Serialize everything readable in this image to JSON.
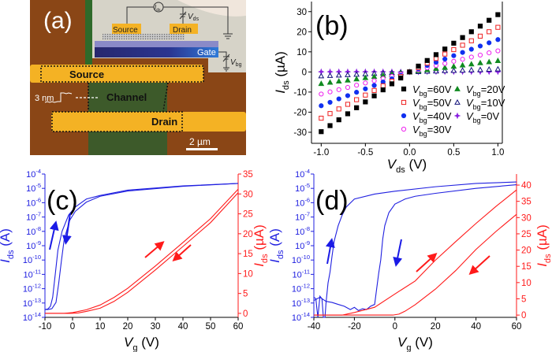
{
  "panel_a": {
    "label": "(a)",
    "inset": {
      "ids_main": "I",
      "ids_sub": "ds",
      "vds_main": "V",
      "vds_sub": "ds",
      "vbg_main": "V",
      "vbg_sub": "bg",
      "source": "Source",
      "drain": "Drain",
      "gate": "Gate"
    },
    "source": "Source",
    "channel": "Channel",
    "drain": "Drain",
    "step_label": "3 nm",
    "scale_bar": "2 µm",
    "colors": {
      "substrate": "#8a4616",
      "electrode": "#f4b224",
      "channel": "#3d5a2a",
      "gate": "#27308a"
    }
  },
  "chart_data": [
    {
      "id": "b",
      "type": "scatter",
      "panel_label": "(b)",
      "xlabel": {
        "main": "V",
        "sub": "ds",
        "unit": " (V)"
      },
      "ylabel": {
        "main": "I",
        "sub": "ds",
        "unit": " (µA)"
      },
      "xlim": [
        -1.11,
        1.05
      ],
      "ylim": [
        -35.5,
        35
      ],
      "xticks": [
        -1.0,
        -0.5,
        0.0,
        0.5,
        1.0
      ],
      "xtick_labels": [
        "-1.0",
        "-0.5",
        "0.0",
        "0.5",
        "1.0"
      ],
      "yticks": [
        -30,
        -20,
        -10,
        0,
        10,
        20,
        30
      ],
      "ytick_labels": [
        "-30",
        "-20",
        "-10",
        "0",
        "10",
        "20",
        "30"
      ],
      "legend_placement": "lower-right",
      "x": [
        -1.0,
        -0.9,
        -0.8,
        -0.7,
        -0.6,
        -0.5,
        -0.4,
        -0.3,
        -0.2,
        -0.1,
        0,
        0.1,
        0.2,
        0.3,
        0.4,
        0.5,
        0.6,
        0.7,
        0.8,
        0.9,
        1.0
      ],
      "series": [
        {
          "name_main": "V",
          "name_sub": "bg",
          "name_rest": "=60V",
          "color": "#000000",
          "marker": "square-filled",
          "values": [
            -29.7,
            -26.7,
            -23.8,
            -20.8,
            -17.8,
            -14.9,
            -11.9,
            -8.9,
            -5.9,
            -3.0,
            0,
            2.9,
            5.7,
            8.6,
            11.4,
            14.3,
            17.1,
            20.0,
            22.8,
            25.7,
            28.5
          ]
        },
        {
          "name_main": "V",
          "name_sub": "bg",
          "name_rest": "=50V",
          "color": "#ee2020",
          "marker": "square-open",
          "values": [
            -23.0,
            -20.7,
            -18.4,
            -16.1,
            -13.8,
            -11.5,
            -9.2,
            -6.9,
            -4.6,
            -2.3,
            0,
            2.2,
            4.4,
            6.7,
            8.9,
            11.1,
            13.3,
            15.5,
            17.8,
            20.0,
            22.2
          ]
        },
        {
          "name_main": "V",
          "name_sub": "bg",
          "name_rest": "=40V",
          "color": "#1030f0",
          "marker": "circle-filled",
          "values": [
            -16.8,
            -15.1,
            -13.4,
            -11.8,
            -10.1,
            -8.4,
            -6.7,
            -5.0,
            -3.4,
            -1.7,
            0,
            1.6,
            3.2,
            4.8,
            6.4,
            8.1,
            9.7,
            11.3,
            12.9,
            14.5,
            16.1
          ]
        },
        {
          "name_main": "V",
          "name_sub": "bg",
          "name_rest": "=30V",
          "color": "#ee20ee",
          "marker": "circle-open",
          "values": [
            -11.0,
            -9.9,
            -8.8,
            -7.7,
            -6.6,
            -5.5,
            -4.4,
            -3.3,
            -2.2,
            -1.1,
            0,
            1.1,
            2.1,
            3.2,
            4.2,
            5.3,
            6.3,
            7.4,
            8.4,
            9.5,
            10.5
          ]
        },
        {
          "name_main": "V",
          "name_sub": "bg",
          "name_rest": "=20V",
          "color": "#108a20",
          "marker": "triangle-filled",
          "values": [
            -5.8,
            -5.2,
            -4.6,
            -4.1,
            -3.5,
            -2.9,
            -2.3,
            -1.7,
            -1.2,
            -0.6,
            0,
            0.6,
            1.1,
            1.7,
            2.2,
            2.8,
            3.4,
            3.9,
            4.5,
            5.0,
            5.6
          ]
        },
        {
          "name_main": "V",
          "name_sub": "bg",
          "name_rest": "=10V",
          "color": "#10107a",
          "marker": "triangle-open",
          "values": [
            -2.0,
            -1.8,
            -1.6,
            -1.4,
            -1.2,
            -1.0,
            -0.8,
            -0.6,
            -0.4,
            -0.2,
            0,
            0.1,
            0.3,
            0.4,
            0.6,
            0.7,
            0.8,
            1.0,
            1.1,
            1.3,
            1.4
          ]
        },
        {
          "name_main": "V",
          "name_sub": "bg",
          "name_rest": "=0V",
          "color": "#8a20e0",
          "marker": "star-filled",
          "values": [
            0.1,
            0.1,
            0.1,
            0.1,
            0.1,
            0.1,
            0.1,
            0.1,
            0.1,
            0.0,
            0,
            0.0,
            0.1,
            0.1,
            0.1,
            0.1,
            0.1,
            0.1,
            0.1,
            0.1,
            0.1
          ]
        }
      ]
    },
    {
      "id": "c",
      "type": "line",
      "panel_label": "(c)",
      "xlabel": {
        "main": "V",
        "sub": "g",
        "unit": " (V)"
      },
      "ylabel_left": {
        "main": "I",
        "sub": "ds",
        "unit": " (A)"
      },
      "ylabel_right": {
        "main": "I",
        "sub": "ds",
        "unit": " (µA)"
      },
      "xlim": [
        -10,
        60
      ],
      "ylim_left_log10": [
        -14,
        -4
      ],
      "ylim_right": [
        -1,
        35
      ],
      "xticks": [
        -10,
        0,
        10,
        20,
        30,
        40,
        50,
        60
      ],
      "xtick_labels": [
        "-10",
        "0",
        "10",
        "20",
        "30",
        "40",
        "50",
        "60"
      ],
      "yticks_left_exp": [
        -14,
        -13,
        -12,
        -11,
        -10,
        -9,
        -8,
        -7,
        -6,
        -5,
        -4
      ],
      "yticks_right": [
        0,
        5,
        10,
        15,
        20,
        25,
        30,
        35
      ],
      "ytick_labels_right": [
        "0",
        "5",
        "10",
        "15",
        "20",
        "25",
        "30",
        "35"
      ],
      "left_color": "#2020e0",
      "right_color": "#ff1a1a",
      "log_series": [
        {
          "sweep": "forward",
          "points": [
            [
              -10,
              3.5e-14
            ],
            [
              -9,
              3.8e-14
            ],
            [
              -8,
              6e-14
            ],
            [
              -7.2,
              2.5e-13
            ],
            [
              -6.2,
              1.3e-11
            ],
            [
              -5.3,
              5e-10
            ],
            [
              -3.8,
              1e-08
            ],
            [
              -1.4,
              1.4e-07
            ],
            [
              1,
              5e-07
            ],
            [
              5,
              1.8e-06
            ],
            [
              10,
              3.2e-06
            ],
            [
              20,
              7.5e-06
            ],
            [
              40,
              1.5e-05
            ],
            [
              60,
              2.2e-05
            ]
          ]
        },
        {
          "sweep": "reverse",
          "points": [
            [
              -10,
              3.5e-14
            ],
            [
              -9,
              3.5e-14
            ],
            [
              -7.5,
              4e-14
            ],
            [
              -6,
              1.1e-13
            ],
            [
              -5,
              2.5e-12
            ],
            [
              -4,
              1e-10
            ],
            [
              -3,
              3e-09
            ],
            [
              -1,
              6e-08
            ],
            [
              1,
              2.5e-07
            ],
            [
              5,
              1.1e-06
            ],
            [
              10,
              2.8e-06
            ],
            [
              20,
              6.5e-06
            ],
            [
              40,
              1.4e-05
            ],
            [
              60,
              2.2e-05
            ]
          ]
        }
      ],
      "lin_series": [
        {
          "sweep": "forward",
          "points": [
            [
              -10,
              0
            ],
            [
              -3,
              0
            ],
            [
              0,
              0.2
            ],
            [
              5,
              0.9
            ],
            [
              10,
              2.1
            ],
            [
              15,
              4
            ],
            [
              20,
              6.3
            ],
            [
              30,
              11.9
            ],
            [
              40,
              17.8
            ],
            [
              50,
              23.8
            ],
            [
              60,
              31.2
            ]
          ]
        },
        {
          "sweep": "reverse",
          "points": [
            [
              -10,
              0
            ],
            [
              -1,
              0
            ],
            [
              2,
              0.1
            ],
            [
              5,
              0.5
            ],
            [
              10,
              1.3
            ],
            [
              15,
              3
            ],
            [
              20,
              5.3
            ],
            [
              30,
              10.9
            ],
            [
              40,
              16.8
            ],
            [
              50,
              22.8
            ],
            [
              60,
              30.3
            ]
          ]
        }
      ]
    },
    {
      "id": "d",
      "type": "line",
      "panel_label": "(d)",
      "xlabel": {
        "main": "V",
        "sub": "g",
        "unit": " (V)"
      },
      "ylabel_left": {
        "main": "I",
        "sub": "ds",
        "unit": " (A)"
      },
      "ylabel_right": {
        "main": "I",
        "sub": "ds",
        "unit": " (µA)"
      },
      "xlim": [
        -40,
        60
      ],
      "ylim_left_log10": [
        -14,
        -4
      ],
      "ylim_right": [
        -0.7,
        43.4
      ],
      "xticks": [
        -40,
        -20,
        0,
        20,
        40,
        60
      ],
      "xtick_labels": [
        "-40",
        "-20",
        "0",
        "20",
        "40",
        "60"
      ],
      "yticks_left_exp": [
        -14,
        -13,
        -12,
        -11,
        -10,
        -9,
        -8,
        -7,
        -6,
        -5,
        -4
      ],
      "yticks_right": [
        0,
        5,
        10,
        15,
        20,
        25,
        30,
        35,
        40
      ],
      "ytick_labels_right": [
        "0",
        "5",
        "10",
        "15",
        "20",
        "25",
        "30",
        "35",
        "40"
      ],
      "left_color": "#2020e0",
      "right_color": "#ff1a1a",
      "log_series": [
        {
          "sweep": "forward",
          "points": [
            [
              -40,
              2.5e-13
            ],
            [
              -39,
              2e-13
            ],
            [
              -38.5,
              4e-14
            ],
            [
              -38,
              1e-14
            ],
            [
              -37,
              3e-13
            ],
            [
              -36,
              2e-13
            ],
            [
              -35.3,
              1e-14
            ],
            [
              -34.5,
              1e-14
            ],
            [
              -34,
              1e-13
            ],
            [
              -33,
              2.5e-12
            ],
            [
              -32,
              1.5e-11
            ],
            [
              -31,
              2e-10
            ],
            [
              -30,
              2e-09
            ],
            [
              -28,
              2.5e-08
            ],
            [
              -26,
              1.4e-07
            ],
            [
              -24,
              5e-07
            ],
            [
              -20,
              1.8e-06
            ],
            [
              -10,
              4e-06
            ],
            [
              0,
              6.3e-06
            ],
            [
              20,
              1.3e-05
            ],
            [
              40,
              2.2e-05
            ],
            [
              60,
              2.8e-05
            ]
          ]
        },
        {
          "sweep": "reverse",
          "points": [
            [
              -40,
              1.5e-13
            ],
            [
              -37,
              2.5e-13
            ],
            [
              -34,
              1.3e-13
            ],
            [
              -31,
              1.1e-13
            ],
            [
              -28,
              8e-14
            ],
            [
              -25,
              6e-14
            ],
            [
              -22,
              3.5e-14
            ],
            [
              -20,
              5e-14
            ],
            [
              -18,
              3e-14
            ],
            [
              -16,
              4e-14
            ],
            [
              -14,
              3.5e-14
            ],
            [
              -12,
              6e-14
            ],
            [
              -10,
              8e-14
            ],
            [
              -9,
              1e-12
            ],
            [
              -8,
              1.2e-11
            ],
            [
              -7,
              1e-10
            ],
            [
              -6,
              3e-09
            ],
            [
              -5,
              2.5e-08
            ],
            [
              -3,
              2e-07
            ],
            [
              0,
              8e-07
            ],
            [
              5,
              1.8e-06
            ],
            [
              10,
              2.8e-06
            ],
            [
              20,
              4.5e-06
            ],
            [
              40,
              1e-05
            ],
            [
              60,
              1.8e-05
            ]
          ]
        }
      ],
      "lin_series": [
        {
          "sweep": "forward",
          "points": [
            [
              -40,
              0
            ],
            [
              -26,
              0
            ],
            [
              -20,
              0.8
            ],
            [
              -10,
              2.4
            ],
            [
              0,
              6.5
            ],
            [
              10,
              10.5
            ],
            [
              20,
              16.9
            ],
            [
              30,
              22.6
            ],
            [
              40,
              28.2
            ],
            [
              50,
              33.5
            ],
            [
              60,
              38.5
            ]
          ]
        },
        {
          "sweep": "reverse",
          "points": [
            [
              -40,
              0
            ],
            [
              -1,
              0
            ],
            [
              2,
              0.3
            ],
            [
              5,
              1.2
            ],
            [
              10,
              3.2
            ],
            [
              20,
              8
            ],
            [
              30,
              13.7
            ],
            [
              40,
              20.2
            ],
            [
              50,
              25.8
            ],
            [
              60,
              31
            ]
          ]
        }
      ]
    }
  ]
}
